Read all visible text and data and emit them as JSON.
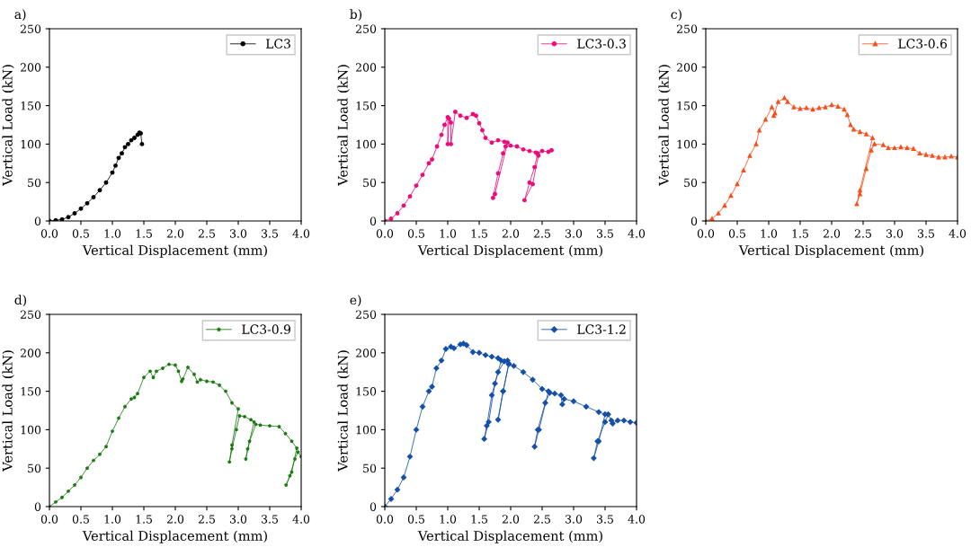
{
  "chart_data": [
    {
      "type": "line",
      "title": "a)",
      "xlabel": "Vertical Displacement (mm)",
      "ylabel": "Vertical Load (kN)",
      "xlim": [
        0,
        4
      ],
      "ylim": [
        0,
        250
      ],
      "xticks": [
        {
          "value": 0,
          "label": "0.0"
        },
        {
          "value": 0.5,
          "label": "0.5"
        },
        {
          "value": 1,
          "label": "1.0"
        },
        {
          "value": 1.5,
          "label": "1.5"
        },
        {
          "value": 2,
          "label": "2.0"
        },
        {
          "value": 2.5,
          "label": "2.5"
        },
        {
          "value": 3,
          "label": "3.0"
        },
        {
          "value": 3.5,
          "label": "3.5"
        },
        {
          "value": 4,
          "label": "4.0"
        }
      ],
      "yticks": [
        0,
        50,
        100,
        150,
        200,
        250
      ],
      "legend": "top right",
      "marker": "circle",
      "series": [
        {
          "name": "LC3",
          "color": "#000000",
          "x": [
            0,
            0.1,
            0.2,
            0.3,
            0.4,
            0.5,
            0.6,
            0.7,
            0.8,
            0.9,
            1.0,
            1.05,
            1.1,
            1.15,
            1.2,
            1.25,
            1.3,
            1.35,
            1.4,
            1.43,
            1.45,
            1.47
          ],
          "values": [
            0,
            1,
            2,
            5,
            10,
            16,
            23,
            31,
            40,
            50,
            63,
            72,
            82,
            88,
            96,
            100,
            105,
            108,
            112,
            115,
            114,
            100
          ]
        }
      ]
    },
    {
      "type": "line",
      "title": "b)",
      "xlabel": "Vertical Displacement (mm)",
      "ylabel": "Vertical Load (kN)",
      "xlim": [
        0,
        4
      ],
      "ylim": [
        0,
        250
      ],
      "xticks": [
        {
          "value": 0,
          "label": "0.0"
        },
        {
          "value": 0.5,
          "label": "0.5"
        },
        {
          "value": 1,
          "label": "1.0"
        },
        {
          "value": 1.5,
          "label": "1.5"
        },
        {
          "value": 2,
          "label": "2.0"
        },
        {
          "value": 2.5,
          "label": "2.5"
        },
        {
          "value": 3,
          "label": "3.0"
        },
        {
          "value": 3.5,
          "label": "3.5"
        },
        {
          "value": 4,
          "label": "4.0"
        }
      ],
      "yticks": [
        0,
        50,
        100,
        150,
        200,
        250
      ],
      "legend": "top right",
      "marker": "circle",
      "series": [
        {
          "name": "LC3-0.3",
          "color": "#ec0c7d",
          "x": [
            0,
            0.1,
            0.2,
            0.3,
            0.4,
            0.5,
            0.6,
            0.7,
            0.75,
            0.83,
            0.9,
            0.95,
            1.0,
            1.0,
            1.02,
            1.05,
            1.05,
            1.12,
            1.2,
            1.3,
            1.4,
            1.45,
            1.5,
            1.55,
            1.6,
            1.7,
            1.8,
            1.9,
            1.95,
            1.75,
            1.72,
            1.8,
            1.88,
            1.92,
            2.0,
            2.1,
            2.2,
            2.3,
            2.4,
            2.44,
            2.35,
            2.22,
            2.3,
            2.38,
            2.43,
            2.5,
            2.6,
            2.65
          ],
          "values": [
            0,
            3,
            10,
            20,
            32,
            46,
            60,
            75,
            80,
            97,
            112,
            125,
            135,
            100,
            133,
            128,
            100,
            142,
            137,
            134,
            139,
            137,
            127,
            118,
            108,
            102,
            105,
            103,
            102,
            35,
            30,
            62,
            88,
            97,
            98,
            97,
            93,
            91,
            89,
            85,
            48,
            27,
            50,
            70,
            88,
            91,
            90,
            92
          ]
        }
      ]
    },
    {
      "type": "line",
      "title": "c)",
      "xlabel": "Vertical Displacement (mm)",
      "ylabel": "Vertical Load (kN)",
      "xlim": [
        0,
        4
      ],
      "ylim": [
        0,
        250
      ],
      "xticks": [
        {
          "value": 0,
          "label": "0.0"
        },
        {
          "value": 0.5,
          "label": "0.5"
        },
        {
          "value": 1,
          "label": "1.0"
        },
        {
          "value": 1.5,
          "label": "1.5"
        },
        {
          "value": 2,
          "label": "2.0"
        },
        {
          "value": 2.5,
          "label": "2.5"
        },
        {
          "value": 3,
          "label": "3.0"
        },
        {
          "value": 3.5,
          "label": "3.5"
        },
        {
          "value": 4,
          "label": "4.0"
        }
      ],
      "yticks": [
        0,
        50,
        100,
        150,
        200,
        250
      ],
      "legend": "top right",
      "marker": "triangle",
      "series": [
        {
          "name": "LC3-0.6",
          "color": "#f4511e",
          "x": [
            0,
            0.1,
            0.2,
            0.3,
            0.4,
            0.5,
            0.6,
            0.7,
            0.8,
            0.85,
            0.95,
            1.05,
            1.1,
            1.08,
            1.15,
            1.25,
            1.3,
            1.4,
            1.5,
            1.6,
            1.7,
            1.8,
            1.9,
            2.0,
            2.1,
            2.2,
            2.25,
            2.3,
            2.35,
            2.45,
            2.55,
            2.65,
            2.45,
            2.4,
            2.45,
            2.55,
            2.63,
            2.68,
            2.82,
            2.9,
            3.0,
            3.1,
            3.2,
            3.3,
            3.4,
            3.5,
            3.6,
            3.7,
            3.8,
            3.9,
            4.0
          ],
          "values": [
            0,
            3,
            10,
            20,
            33,
            48,
            66,
            85,
            100,
            118,
            132,
            148,
            140,
            137,
            155,
            160,
            155,
            148,
            146,
            147,
            145,
            147,
            148,
            151,
            149,
            145,
            138,
            125,
            119,
            116,
            113,
            108,
            40,
            22,
            35,
            68,
            92,
            100,
            99,
            95,
            95,
            96,
            95,
            94,
            88,
            86,
            85,
            83,
            83,
            84,
            83
          ]
        }
      ]
    },
    {
      "type": "line",
      "title": "d)",
      "xlabel": "Vertical Displacement (mm)",
      "ylabel": "Vertical Load (kN)",
      "xlim": [
        0,
        4
      ],
      "ylim": [
        0,
        250
      ],
      "xticks": [
        {
          "value": 0,
          "label": "0.0"
        },
        {
          "value": 0.5,
          "label": "0.5"
        },
        {
          "value": 1,
          "label": "1.0"
        },
        {
          "value": 1.5,
          "label": "1.5"
        },
        {
          "value": 2,
          "label": "2.0"
        },
        {
          "value": 2.5,
          "label": "2.5"
        },
        {
          "value": 3,
          "label": "3.0"
        },
        {
          "value": 3.5,
          "label": "3.5"
        },
        {
          "value": 4,
          "label": "4.0"
        }
      ],
      "yticks": [
        0,
        50,
        100,
        150,
        200,
        250
      ],
      "legend": "top right",
      "marker": "star",
      "series": [
        {
          "name": "LC3-0.9",
          "color": "#1b7a12",
          "x": [
            0,
            0.1,
            0.2,
            0.3,
            0.4,
            0.5,
            0.6,
            0.7,
            0.8,
            0.9,
            1.0,
            1.1,
            1.2,
            1.3,
            1.35,
            1.4,
            1.5,
            1.6,
            1.65,
            1.7,
            1.8,
            1.9,
            2.0,
            2.05,
            2.1,
            2.12,
            2.2,
            2.3,
            2.35,
            2.4,
            2.5,
            2.6,
            2.7,
            2.8,
            2.9,
            3.0,
            2.9,
            2.86,
            2.9,
            2.97,
            3.02,
            3.1,
            3.2,
            3.25,
            3.15,
            3.12,
            3.18,
            3.28,
            3.35,
            3.5,
            3.65,
            3.75,
            3.85,
            3.93,
            3.85,
            3.76,
            3.82,
            3.9,
            3.95,
            4.0
          ],
          "values": [
            0,
            6,
            12,
            20,
            28,
            38,
            50,
            60,
            68,
            78,
            98,
            115,
            130,
            140,
            142,
            147,
            168,
            176,
            168,
            176,
            180,
            185,
            184,
            176,
            163,
            166,
            181,
            172,
            162,
            165,
            163,
            162,
            158,
            150,
            135,
            127,
            80,
            58,
            75,
            100,
            118,
            117,
            113,
            110,
            75,
            62,
            85,
            107,
            106,
            105,
            104,
            95,
            85,
            76,
            45,
            28,
            40,
            62,
            71,
            65
          ]
        }
      ]
    },
    {
      "type": "line",
      "title": "e)",
      "xlabel": "Vertical Displacement (mm)",
      "ylabel": "Vertical Load (kN)",
      "xlim": [
        0,
        4
      ],
      "ylim": [
        0,
        250
      ],
      "xticks": [
        {
          "value": 0,
          "label": "0.0"
        },
        {
          "value": 0.5,
          "label": "0.5"
        },
        {
          "value": 1,
          "label": "1.0"
        },
        {
          "value": 1.5,
          "label": "1.5"
        },
        {
          "value": 2,
          "label": "2.0"
        },
        {
          "value": 2.5,
          "label": "2.5"
        },
        {
          "value": 3,
          "label": "3.0"
        },
        {
          "value": 3.5,
          "label": "3.5"
        },
        {
          "value": 4,
          "label": "4.0"
        }
      ],
      "yticks": [
        0,
        50,
        100,
        150,
        200,
        250
      ],
      "legend": "top right",
      "marker": "diamond",
      "series": [
        {
          "name": "LC3-1.2",
          "color": "#1450a8",
          "x": [
            0,
            0.1,
            0.2,
            0.3,
            0.4,
            0.5,
            0.6,
            0.7,
            0.75,
            0.82,
            0.9,
            0.97,
            1.05,
            1.1,
            1.2,
            1.25,
            1.3,
            1.4,
            1.5,
            1.6,
            1.7,
            1.8,
            1.85,
            1.75,
            1.65,
            1.58,
            1.62,
            1.7,
            1.8,
            1.9,
            1.95,
            1.97,
            1.88,
            1.8,
            1.88,
            1.97,
            2.05,
            2.2,
            2.35,
            2.5,
            2.6,
            2.45,
            2.38,
            2.43,
            2.55,
            2.62,
            2.7,
            2.8,
            2.82,
            2.85,
            3.0,
            3.2,
            3.4,
            3.5,
            3.4,
            3.32,
            3.38,
            3.5,
            3.55,
            3.6,
            3.62,
            3.7,
            3.8,
            3.9,
            4.0
          ],
          "values": [
            0,
            10,
            22,
            38,
            65,
            100,
            130,
            150,
            156,
            180,
            190,
            205,
            208,
            206,
            211,
            212,
            210,
            201,
            200,
            197,
            195,
            193,
            190,
            160,
            110,
            88,
            105,
            145,
            175,
            189,
            190,
            185,
            150,
            113,
            150,
            186,
            183,
            175,
            165,
            153,
            150,
            100,
            78,
            100,
            135,
            148,
            147,
            145,
            133,
            140,
            137,
            130,
            123,
            120,
            85,
            63,
            85,
            110,
            120,
            112,
            108,
            112,
            112,
            110,
            109
          ]
        }
      ]
    }
  ]
}
